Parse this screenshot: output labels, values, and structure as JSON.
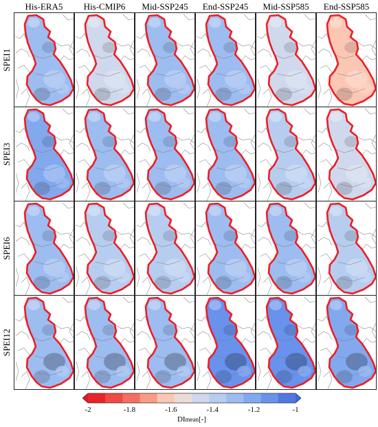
{
  "columns": [
    "His-ERA5",
    "His-CMIP6",
    "Mid-SSP245",
    "End-SSP245",
    "Mid-SSP585",
    "End-SSP585"
  ],
  "rows": [
    "SPEI1",
    "SPEI3",
    "SPEI6",
    "SPEI12"
  ],
  "colorbar": {
    "ticks": [
      "-2",
      "-1.8",
      "-1.6",
      "-1.4",
      "-1.2",
      "-1"
    ],
    "label_main": "DI",
    "label_sub": "mean",
    "label_unit": "[-]",
    "min": -2.0,
    "max": -1.0,
    "colors": [
      "#e8242a",
      "#ef4a43",
      "#f46f5f",
      "#f99b85",
      "#fbc7b4",
      "#ecdcd8",
      "#cfd8ec",
      "#b7cdf0",
      "#9dbcf0",
      "#82a9ee",
      "#6892ec",
      "#4f78e3"
    ]
  },
  "panel_values": [
    [
      -1.27,
      -1.45,
      -1.3,
      -1.33,
      -1.42,
      -1.62
    ],
    [
      -1.24,
      -1.33,
      -1.28,
      -1.33,
      -1.36,
      -1.48
    ],
    [
      -1.33,
      -1.34,
      -1.34,
      -1.33,
      -1.33,
      -1.35
    ],
    [
      -1.28,
      -1.32,
      -1.31,
      -1.14,
      -1.12,
      -1.22
    ]
  ],
  "basin_outline_color": "#ee1c24",
  "country_border_color": "#8a8a8a"
}
